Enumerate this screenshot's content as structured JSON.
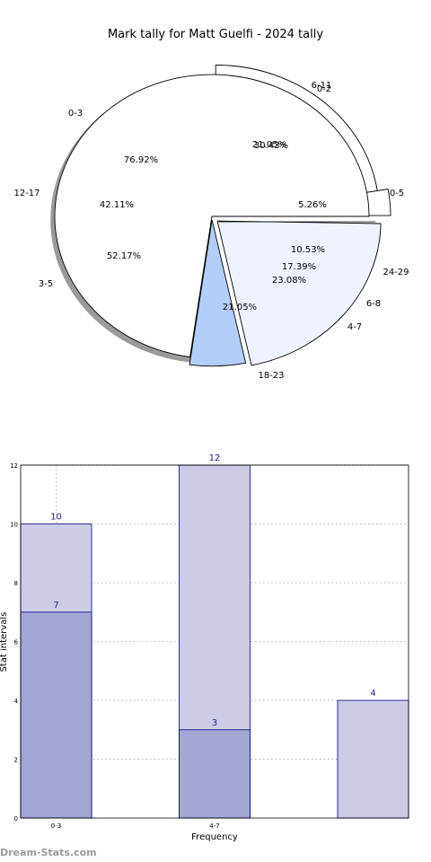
{
  "chart_data": [
    {
      "type": "pie",
      "title": "Mark tally for Matt Guelfi - 2024 tally",
      "layers": [
        {
          "name": "",
          "slices": [
            {
              "label": "0-3",
              "percent": "76.92%",
              "value": 76.92
            },
            {
              "label": "4-7",
              "percent": "23.08%",
              "value": 23.08
            }
          ]
        },
        {
          "name": "",
          "slices": [
            {
              "label": "0-2",
              "percent": "30.43%",
              "value": 30.43
            },
            {
              "label": "3-5",
              "percent": "52.17%",
              "value": 52.17
            },
            {
              "label": "6-8",
              "percent": "17.39%",
              "value": 17.39
            }
          ]
        },
        {
          "name": "",
          "slices": [
            {
              "label": "0-5",
              "percent": "21.05%",
              "value": 21.05
            },
            {
              "label": "6-11",
              "percent": "5.26%",
              "value": 5.26
            },
            {
              "label": "12-17",
              "percent": "42.11%",
              "value": 42.11
            },
            {
              "label": "18-23",
              "percent": "21.05%",
              "value": 21.05
            },
            {
              "label": "24-29",
              "percent": "10.53%",
              "value": 10.53
            }
          ]
        }
      ],
      "outer_labels": [
        {
          "text": "6-11"
        },
        {
          "text": "0-2"
        },
        {
          "text": "0-3"
        },
        {
          "text": "0-5"
        },
        {
          "text": "12-17"
        },
        {
          "text": "24-29"
        },
        {
          "text": "3-5"
        },
        {
          "text": "6-8"
        },
        {
          "text": "4-7"
        },
        {
          "text": "18-23"
        }
      ],
      "colors": {
        "white": "#ffffff",
        "light_blue": "#eef3ff",
        "blue": "#b3cef8",
        "edge": "#000000",
        "shadow": "#888888"
      }
    },
    {
      "type": "bar",
      "xlabel": "Frequency",
      "ylabel": "Stat intervals",
      "ylim": [
        0,
        12
      ],
      "yticks": [
        0,
        2,
        4,
        6,
        8,
        10,
        12
      ],
      "categories": [
        "0-3",
        "",
        "4-7",
        "",
        ""
      ],
      "bars": [
        {
          "slot": 0,
          "value": 10,
          "label": "10",
          "style": "light"
        },
        {
          "slot": 0,
          "value": 7,
          "label": "7",
          "style": "dark"
        },
        {
          "slot": 2,
          "value": 12,
          "label": "12",
          "style": "light"
        },
        {
          "slot": 2,
          "value": 3,
          "label": "3",
          "style": "dark"
        },
        {
          "slot": 4,
          "value": 4,
          "label": "4",
          "style": "light"
        }
      ],
      "grid": true,
      "colors": {
        "light": "#ccccE6",
        "dark": "#a3a6d4",
        "edge": "#00007f",
        "label": "#1f1f80",
        "grid": "#b0b0b0"
      }
    }
  ],
  "watermark": "Dream-Stats.com"
}
